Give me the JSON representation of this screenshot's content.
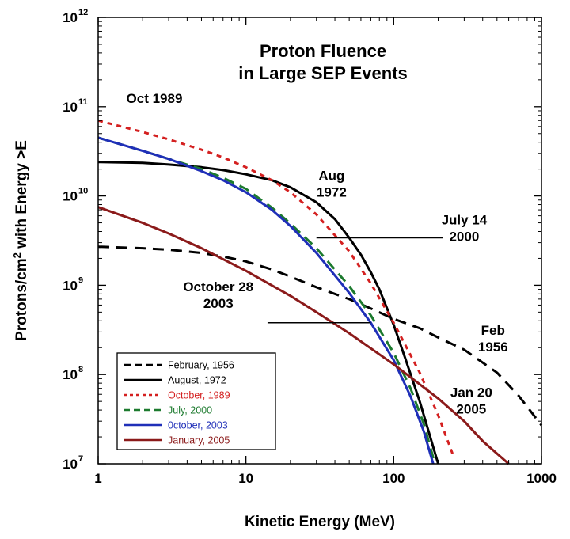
{
  "chart_data": {
    "type": "line",
    "title": [
      "Proton Fluence",
      "in Large SEP Events"
    ],
    "xlabel": "Kinetic Energy (MeV)",
    "ylabel_parts": [
      "Protons/cm",
      "2",
      " with Energy >E"
    ],
    "x_scale": "log",
    "y_scale": "log",
    "xlim": [
      1,
      1000
    ],
    "ylim": [
      10000000,
      1000000000000
    ],
    "x_ticks": [
      {
        "value": 1,
        "label": "1"
      },
      {
        "value": 10,
        "label": "10"
      },
      {
        "value": 100,
        "label": "100"
      },
      {
        "value": 1000,
        "label": "1000"
      }
    ],
    "y_ticks": [
      {
        "value": 10000000,
        "base": "10",
        "exp": "7"
      },
      {
        "value": 100000000,
        "base": "10",
        "exp": "8"
      },
      {
        "value": 1000000000,
        "base": "10",
        "exp": "9"
      },
      {
        "value": 10000000000,
        "base": "10",
        "exp": "10"
      },
      {
        "value": 100000000000,
        "base": "10",
        "exp": "11"
      },
      {
        "value": 1000000000000,
        "base": "10",
        "exp": "12"
      }
    ],
    "series": [
      {
        "name": "February, 1956",
        "color": "#000000",
        "dash": "14,9",
        "width": 3,
        "x": [
          1,
          2,
          3,
          5,
          7,
          10,
          15,
          20,
          30,
          50,
          70,
          100,
          150,
          200,
          300,
          500,
          700,
          1000
        ],
        "y": [
          2700000000.0,
          2600000000.0,
          2500000000.0,
          2300000000.0,
          2100000000.0,
          1850000000.0,
          1500000000.0,
          1250000000.0,
          950000000.0,
          700000000.0,
          550000000.0,
          420000000.0,
          330000000.0,
          260000000.0,
          190000000.0,
          105000000.0,
          58000000.0,
          27000000.0
        ]
      },
      {
        "name": "August, 1972",
        "color": "#000000",
        "dash": "",
        "width": 3,
        "x": [
          1,
          2,
          3,
          5,
          7,
          10,
          15,
          20,
          30,
          40,
          50,
          60,
          70,
          80,
          100,
          120,
          150,
          180,
          200
        ],
        "y": [
          24000000000.0,
          23500000000.0,
          22500000000.0,
          21000000000.0,
          19500000000.0,
          17500000000.0,
          15000000000.0,
          12500000000.0,
          8500000000.0,
          5500000000.0,
          3400000000.0,
          2200000000.0,
          1400000000.0,
          900000000.0,
          360000000.0,
          150000000.0,
          50000000.0,
          18000000.0,
          10000000.0
        ]
      },
      {
        "name": "October, 1989",
        "color": "#d42020",
        "dash": "6,6",
        "width": 3,
        "x": [
          1,
          2,
          3,
          5,
          7,
          10,
          15,
          20,
          30,
          50,
          70,
          100,
          150,
          200,
          250
        ],
        "y": [
          70000000000.0,
          52000000000.0,
          43000000000.0,
          33000000000.0,
          27000000000.0,
          21000000000.0,
          15000000000.0,
          11000000000.0,
          6200000000.0,
          2400000000.0,
          1050000000.0,
          380000000.0,
          105000000.0,
          35000000.0,
          13000000.0
        ]
      },
      {
        "name": "July, 2000",
        "color": "#1c7a2e",
        "dash": "13,8",
        "width": 3,
        "x": [
          1,
          2,
          3,
          5,
          7,
          10,
          15,
          20,
          30,
          50,
          70,
          100,
          130,
          160,
          190
        ],
        "y": [
          45000000000.0,
          32000000000.0,
          26000000000.0,
          20000000000.0,
          16000000000.0,
          12000000000.0,
          7400000000.0,
          4900000000.0,
          2600000000.0,
          980000000.0,
          460000000.0,
          175000000.0,
          70000000.0,
          28000000.0,
          10000000.0
        ]
      },
      {
        "name": "0ctober, 2003",
        "color": "#1f2fb8",
        "dash": "",
        "width": 3,
        "x": [
          1,
          2,
          3,
          5,
          7,
          10,
          15,
          20,
          30,
          50,
          70,
          100,
          130,
          160,
          185
        ],
        "y": [
          45000000000.0,
          32000000000.0,
          26000000000.0,
          19000000000.0,
          15000000000.0,
          11000000000.0,
          7000000000.0,
          4600000000.0,
          2300000000.0,
          820000000.0,
          380000000.0,
          145000000.0,
          57000000.0,
          23000000.0,
          10000000.0
        ]
      },
      {
        "name": "January, 2005",
        "color": "#8b1a1a",
        "dash": "",
        "width": 3,
        "x": [
          1,
          2,
          3,
          5,
          10,
          20,
          30,
          50,
          100,
          200,
          300,
          400,
          500,
          600
        ],
        "y": [
          7500000000.0,
          5000000000.0,
          3800000000.0,
          2600000000.0,
          1450000000.0,
          760000000.0,
          500000000.0,
          290000000.0,
          130000000.0,
          54000000.0,
          30000000.0,
          18000000.0,
          13000000.0,
          10000000.0
        ]
      }
    ],
    "annotations": [
      {
        "lines": [
          "Oct 1989"
        ],
        "x": 1.55,
        "y": 110000000000.0
      },
      {
        "lines": [
          "Aug",
          "1972"
        ],
        "x": 38,
        "y": 15000000000.0
      },
      {
        "lines": [
          "July 14",
          "2000"
        ],
        "x": 300,
        "y": 4800000000.0,
        "leader": {
          "x1": 30,
          "y1": 3400000000.0,
          "x2": 215,
          "y2": 3400000000.0
        }
      },
      {
        "lines": [
          "October 28",
          "2003"
        ],
        "x": 6.5,
        "y": 860000000.0,
        "leader": {
          "x1": 14,
          "y1": 380000000.0,
          "x2": 70,
          "y2": 380000000.0
        }
      },
      {
        "lines": [
          "Feb",
          "1956"
        ],
        "x": 470,
        "y": 280000000.0
      },
      {
        "lines": [
          "Jan 20",
          "2005"
        ],
        "x": 335,
        "y": 56000000.0
      }
    ],
    "legend": {
      "placement": "bottom-left"
    },
    "grid": false
  }
}
